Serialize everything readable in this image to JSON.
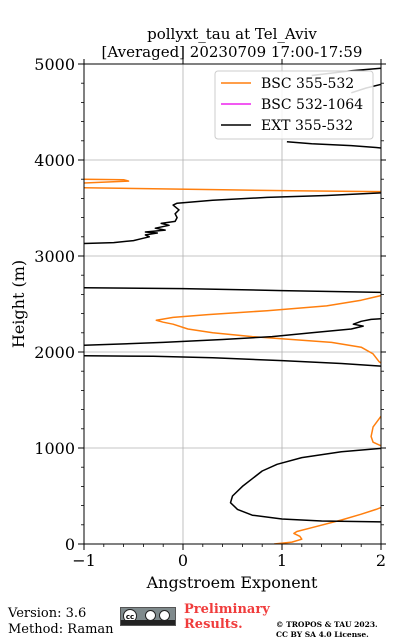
{
  "chart_data": {
    "type": "line",
    "title": "pollyxt_tau at Tel_Aviv",
    "subtitle": "[Averaged] 20230709 17:00-17:59",
    "xlabel": "Angstroem Exponent",
    "ylabel": "Height (m)",
    "xlim": [
      -1,
      2
    ],
    "ylim": [
      0,
      5000
    ],
    "x_ticks": [
      "−1",
      "0",
      "1",
      "2"
    ],
    "x_tick_values": [
      -1,
      0,
      1,
      2
    ],
    "y_ticks": [
      "0",
      "1000",
      "2000",
      "3000",
      "4000",
      "5000"
    ],
    "y_tick_values": [
      0,
      1000,
      2000,
      3000,
      4000,
      5000
    ],
    "grid": true,
    "legend_position": "top-right",
    "series": [
      {
        "name": "BSC 355-532",
        "color": "#ff7f0e",
        "segments": [
          [
            [
              0.92,
              0
            ],
            [
              1.1,
              20
            ],
            [
              1.2,
              50
            ],
            [
              1.18,
              80
            ],
            [
              1.12,
              110
            ],
            [
              1.15,
              130
            ],
            [
              1.3,
              170
            ],
            [
              1.6,
              250
            ],
            [
              1.8,
              310
            ],
            [
              1.95,
              360
            ],
            [
              2.05,
              400
            ]
          ],
          [
            [
              2.05,
              1000
            ],
            [
              1.92,
              1060
            ],
            [
              1.9,
              1120
            ],
            [
              1.92,
              1220
            ],
            [
              2.05,
              1400
            ]
          ],
          [
            [
              2.05,
              1850
            ],
            [
              1.98,
              1900
            ],
            [
              1.92,
              1980
            ],
            [
              1.8,
              2050
            ],
            [
              1.5,
              2100
            ],
            [
              1.1,
              2130
            ],
            [
              0.7,
              2160
            ],
            [
              0.3,
              2200
            ],
            [
              0.05,
              2240
            ],
            [
              -0.1,
              2290
            ],
            [
              -0.2,
              2310
            ],
            [
              -0.27,
              2330
            ],
            [
              -0.1,
              2360
            ],
            [
              0.25,
              2390
            ],
            [
              0.85,
              2430
            ],
            [
              1.45,
              2480
            ],
            [
              1.8,
              2540
            ],
            [
              2.05,
              2600
            ]
          ],
          [
            [
              -1.0,
              3710
            ],
            [
              0.4,
              3690
            ],
            [
              1.1,
              3680
            ],
            [
              1.6,
              3675
            ],
            [
              2.05,
              3670
            ]
          ],
          [
            [
              -1.0,
              3760
            ],
            [
              -0.55,
              3780
            ],
            [
              -0.6,
              3795
            ],
            [
              -1.0,
              3800
            ]
          ]
        ]
      },
      {
        "name": "BSC 532-1064",
        "color": "#ee22ee",
        "segments": []
      },
      {
        "name": "EXT 355-532",
        "color": "#000000",
        "segments": [
          [
            [
              2.05,
              230
            ],
            [
              1.4,
              240
            ],
            [
              1.0,
              260
            ],
            [
              0.7,
              300
            ],
            [
              0.55,
              360
            ],
            [
              0.48,
              430
            ],
            [
              0.5,
              500
            ],
            [
              0.6,
              600
            ],
            [
              0.7,
              680
            ],
            [
              0.8,
              760
            ],
            [
              0.95,
              830
            ],
            [
              1.2,
              900
            ],
            [
              1.6,
              960
            ],
            [
              2.05,
              1000
            ]
          ],
          [
            [
              2.05,
              1850
            ],
            [
              1.6,
              1880
            ],
            [
              1.0,
              1910
            ],
            [
              0.3,
              1940
            ],
            [
              -0.3,
              1955
            ],
            [
              -1.0,
              1960
            ]
          ],
          [
            [
              -1.0,
              2070
            ],
            [
              -0.2,
              2100
            ],
            [
              0.4,
              2130
            ],
            [
              0.9,
              2160
            ],
            [
              1.3,
              2200
            ],
            [
              1.7,
              2240
            ],
            [
              1.82,
              2270
            ],
            [
              1.72,
              2290
            ],
            [
              1.8,
              2320
            ],
            [
              1.9,
              2340
            ],
            [
              2.05,
              2350
            ]
          ],
          [
            [
              2.05,
              2620
            ],
            [
              1.0,
              2640
            ],
            [
              0.0,
              2660
            ],
            [
              -1.0,
              2670
            ]
          ],
          [
            [
              -1.0,
              3130
            ],
            [
              -0.7,
              3140
            ],
            [
              -0.5,
              3160
            ],
            [
              -0.42,
              3180
            ],
            [
              -0.34,
              3200
            ],
            [
              -0.38,
              3220
            ],
            [
              -0.26,
              3240
            ],
            [
              -0.38,
              3250
            ],
            [
              -0.18,
              3270
            ],
            [
              -0.28,
              3290
            ],
            [
              -0.14,
              3320
            ],
            [
              -0.22,
              3340
            ],
            [
              -0.08,
              3360
            ],
            [
              -0.06,
              3400
            ],
            [
              -0.08,
              3440
            ],
            [
              -0.04,
              3480
            ],
            [
              -0.1,
              3530
            ],
            [
              -0.06,
              3550
            ],
            [
              0.3,
              3580
            ],
            [
              0.85,
              3610
            ],
            [
              1.45,
              3630
            ],
            [
              2.05,
              3660
            ]
          ],
          [
            [
              1.05,
              4190
            ],
            [
              1.3,
              4170
            ],
            [
              1.7,
              4150
            ],
            [
              1.95,
              4130
            ],
            [
              2.05,
              4120
            ]
          ],
          [
            [
              1.7,
              4700
            ],
            [
              1.85,
              4750
            ],
            [
              2.05,
              4800
            ]
          ],
          [
            [
              1.3,
              4880
            ],
            [
              1.7,
              4930
            ],
            [
              2.05,
              4960
            ]
          ]
        ]
      }
    ]
  },
  "footer": {
    "version": "Version: 3.6",
    "method": "Method: Raman",
    "preliminary": "Preliminary",
    "results": "Results.",
    "copyright": "© TROPOS & TAU 2023.",
    "license": "CC BY SA 4.0 License.",
    "badge_text": "cc"
  }
}
